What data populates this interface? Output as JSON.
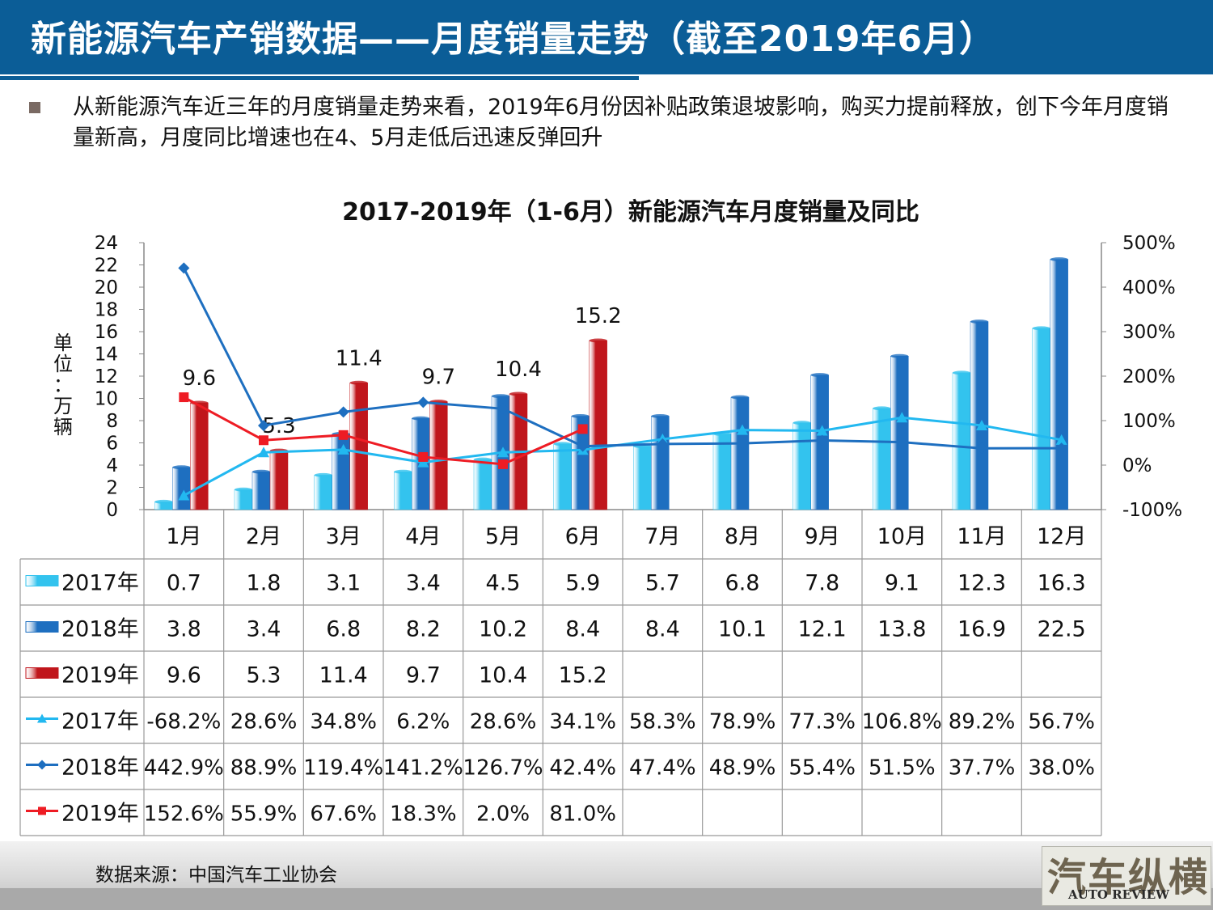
{
  "header": {
    "title": "新能源汽车产销数据——月度销量走势（截至2019年6月）"
  },
  "summary": "从新能源汽车近三年的月度销量走势来看，2019年6月份因补贴政策退坡影响，购买力提前释放，创下今年月度销量新高，月度同比增速也在4、5月走低后迅速反弹回升",
  "footer": {
    "source": "数据来源：中国汽车工业协会",
    "logo_text": "汽车纵横",
    "logo_sub": "AUTO REVIEW"
  },
  "chart_data": {
    "type": "bar",
    "title": "2017-2019年（1-6月）新能源汽车月度销量及同比",
    "ylabel": "单位：万辆",
    "xlabel": "",
    "categories": [
      "1月",
      "2月",
      "3月",
      "4月",
      "5月",
      "6月",
      "7月",
      "8月",
      "9月",
      "10月",
      "11月",
      "12月"
    ],
    "ylim": [
      0,
      24
    ],
    "yticks": [
      0,
      2,
      4,
      6,
      8,
      10,
      12,
      14,
      16,
      18,
      20,
      22,
      24
    ],
    "y2lim": [
      -100,
      500
    ],
    "y2ticks": [
      "-100%",
      "0%",
      "100%",
      "200%",
      "300%",
      "400%",
      "500%"
    ],
    "y2values": [
      -100,
      0,
      100,
      200,
      300,
      400,
      500
    ],
    "grid": false,
    "legend": "data-table",
    "bar_series": [
      {
        "name": "2017年",
        "color": "#33c3ee",
        "values": [
          0.7,
          1.8,
          3.1,
          3.4,
          4.5,
          5.9,
          5.7,
          6.8,
          7.8,
          9.1,
          12.3,
          16.3
        ]
      },
      {
        "name": "2018年",
        "color": "#1e6fc0",
        "values": [
          3.8,
          3.4,
          6.8,
          8.2,
          10.2,
          8.4,
          8.4,
          10.1,
          12.1,
          13.8,
          16.9,
          22.5
        ]
      },
      {
        "name": "2019年",
        "color": "#c0161c",
        "values": [
          9.6,
          5.3,
          11.4,
          9.7,
          10.4,
          15.2,
          null,
          null,
          null,
          null,
          null,
          null
        ]
      }
    ],
    "bar_labels": {
      "series": "2019年",
      "values": [
        "9.6",
        "5.3",
        "11.4",
        "9.7",
        "10.4",
        "15.2"
      ]
    },
    "line_series": [
      {
        "name": "2017年",
        "color": "#22b8f0",
        "marker": "triangle",
        "values": [
          -68.2,
          28.6,
          34.8,
          6.2,
          28.6,
          34.1,
          58.3,
          78.9,
          77.3,
          106.8,
          89.2,
          56.7
        ],
        "labels": [
          "-68.2%",
          "28.6%",
          "34.8%",
          "6.2%",
          "28.6%",
          "34.1%",
          "58.3%",
          "78.9%",
          "77.3%",
          "106.8%",
          "89.2%",
          "56.7%"
        ]
      },
      {
        "name": "2018年",
        "color": "#1e6fc0",
        "marker": "diamond",
        "values": [
          442.9,
          88.9,
          119.4,
          141.2,
          126.7,
          42.4,
          47.4,
          48.9,
          55.4,
          51.5,
          37.7,
          38.0
        ],
        "labels": [
          "442.9%",
          "88.9%",
          "119.4%",
          "141.2%",
          "126.7%",
          "42.4%",
          "47.4%",
          "48.9%",
          "55.4%",
          "51.5%",
          "37.7%",
          "38.0%"
        ]
      },
      {
        "name": "2019年",
        "color": "#ee1c24",
        "marker": "square",
        "values": [
          152.6,
          55.9,
          67.6,
          18.3,
          2.0,
          81.0,
          null,
          null,
          null,
          null,
          null,
          null
        ],
        "labels": [
          "152.6%",
          "55.9%",
          "67.6%",
          "18.3%",
          "2.0%",
          "81.0%",
          "",
          "",
          "",
          "",
          "",
          ""
        ]
      }
    ]
  }
}
